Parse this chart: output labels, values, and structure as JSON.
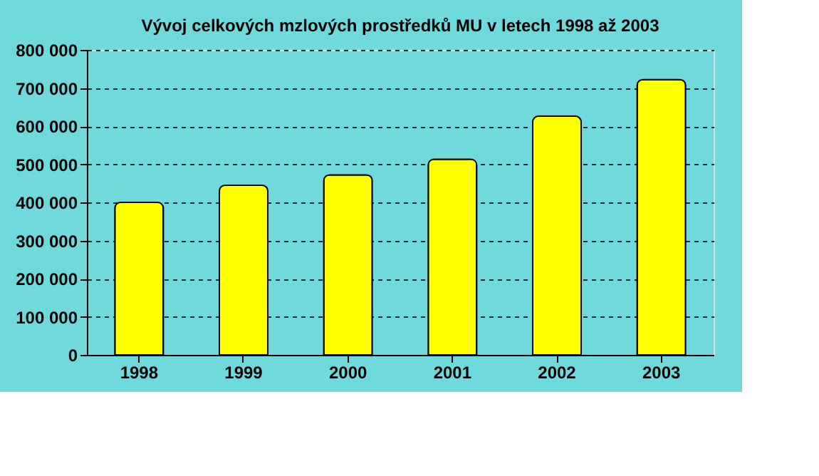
{
  "chart_data": {
    "type": "bar",
    "title": "Vývoj celkových mzlových prostředků MU v letech 1998 až 2003",
    "categories": [
      "1998",
      "1999",
      "2000",
      "2001",
      "2002",
      "2003"
    ],
    "values": [
      400000,
      445000,
      472000,
      513000,
      626000,
      722000
    ],
    "color": "#ffff00",
    "ylim": [
      0,
      800000
    ],
    "yticks": [
      {
        "value": 0,
        "label": "0"
      },
      {
        "value": 100000,
        "label": "100 000"
      },
      {
        "value": 200000,
        "label": "200 000"
      },
      {
        "value": 300000,
        "label": "300 000"
      },
      {
        "value": 400000,
        "label": "400 000"
      },
      {
        "value": 500000,
        "label": "500 000"
      },
      {
        "value": 600000,
        "label": "600 000"
      },
      {
        "value": 700000,
        "label": "700 000"
      },
      {
        "value": 800000,
        "label": "800 000"
      }
    ],
    "grid": "y"
  }
}
